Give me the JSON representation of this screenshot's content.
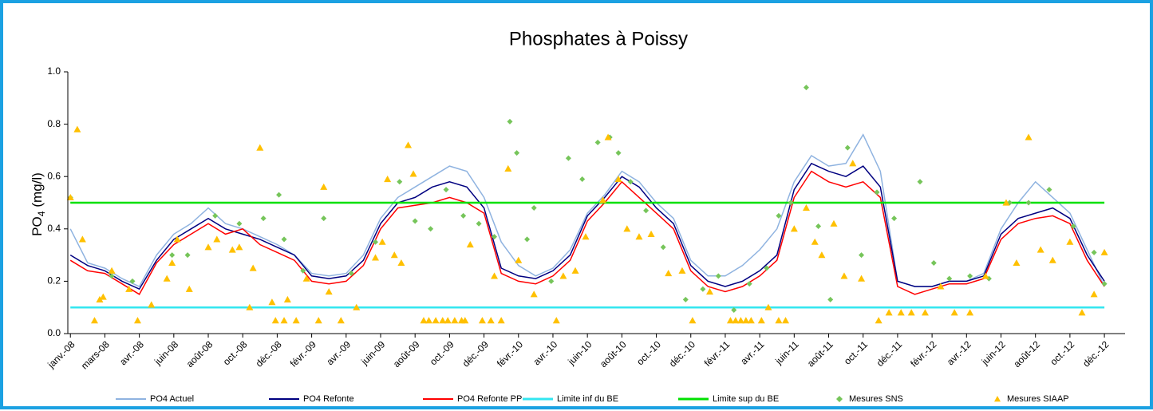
{
  "chart_data": {
    "type": "line",
    "title": "Phosphates à Poissy",
    "ylabel": {
      "main": "PO",
      "sub": "4",
      "unit": "(mg/l)"
    },
    "xlim": [
      -0.15,
      61.2
    ],
    "ylim": [
      0,
      1
    ],
    "yticks": [
      {
        "value": 0,
        "label": "0.0"
      },
      0.2,
      0.4,
      0.6,
      0.8,
      {
        "value": 1,
        "label": "1.0"
      }
    ],
    "xticks": [
      {
        "value": 0,
        "label": "janv.-08"
      },
      {
        "value": 2,
        "label": "mars-08"
      },
      {
        "value": 4,
        "label": "avr.-08"
      },
      {
        "value": 6,
        "label": "juin-08"
      },
      {
        "value": 8,
        "label": "août-08"
      },
      {
        "value": 10,
        "label": "oct.-08"
      },
      {
        "value": 12,
        "label": "déc.-08"
      },
      {
        "value": 14,
        "label": "févr.-09"
      },
      {
        "value": 16,
        "label": "avr.-09"
      },
      {
        "value": 18,
        "label": "juin-09"
      },
      {
        "value": 20,
        "label": "août-09"
      },
      {
        "value": 22,
        "label": "oct.-09"
      },
      {
        "value": 24,
        "label": "déc.-09"
      },
      {
        "value": 26,
        "label": "févr.-10"
      },
      {
        "value": 28,
        "label": "avr.-10"
      },
      {
        "value": 30,
        "label": "juin-10"
      },
      {
        "value": 32,
        "label": "août-10"
      },
      {
        "value": 34,
        "label": "oct.-10"
      },
      {
        "value": 36,
        "label": "déc.-10"
      },
      {
        "value": 38,
        "label": "févr.-11"
      },
      {
        "value": 40,
        "label": "avr.-11"
      },
      {
        "value": 42,
        "label": "juin-11"
      },
      {
        "value": 44,
        "label": "août-11"
      },
      {
        "value": 46,
        "label": "oct.-11"
      },
      {
        "value": 48,
        "label": "déc.-11"
      },
      {
        "value": 50,
        "label": "févr.-12"
      },
      {
        "value": 52,
        "label": "avr.-12"
      },
      {
        "value": 54,
        "label": "juin-12"
      },
      {
        "value": 56,
        "label": "août-12"
      },
      {
        "value": 58,
        "label": "oct.-12"
      },
      {
        "value": 60,
        "label": "déc.-12"
      }
    ],
    "grid": false,
    "legend": "bottom",
    "x": [
      0,
      1,
      2,
      3,
      4,
      5,
      6,
      7,
      8,
      9,
      10,
      11,
      12,
      13,
      14,
      15,
      16,
      17,
      18,
      19,
      20,
      21,
      22,
      23,
      24,
      25,
      26,
      27,
      28,
      29,
      30,
      31,
      32,
      33,
      34,
      35,
      36,
      37,
      38,
      39,
      40,
      41,
      42,
      43,
      44,
      45,
      46,
      47,
      48,
      49,
      50,
      51,
      52,
      53,
      54,
      55,
      56,
      57,
      58,
      59,
      60
    ],
    "series": [
      {
        "name": "PO4 Actuel",
        "type": "line",
        "color": "#8fb3e0",
        "values": [
          0.4,
          0.27,
          0.25,
          0.21,
          0.18,
          0.3,
          0.38,
          0.42,
          0.48,
          0.42,
          0.4,
          0.37,
          0.34,
          0.3,
          0.23,
          0.22,
          0.23,
          0.3,
          0.44,
          0.52,
          0.56,
          0.6,
          0.64,
          0.62,
          0.52,
          0.35,
          0.26,
          0.22,
          0.25,
          0.32,
          0.46,
          0.53,
          0.62,
          0.58,
          0.5,
          0.44,
          0.28,
          0.22,
          0.22,
          0.26,
          0.32,
          0.4,
          0.58,
          0.68,
          0.64,
          0.65,
          0.76,
          0.62,
          0.2,
          0.18,
          0.18,
          0.2,
          0.2,
          0.23,
          0.4,
          0.5,
          0.58,
          0.52,
          0.46,
          0.32,
          0.18
        ]
      },
      {
        "name": "PO4 Refonte",
        "type": "line",
        "color": "#000080",
        "values": [
          0.3,
          0.26,
          0.24,
          0.2,
          0.17,
          0.28,
          0.36,
          0.4,
          0.44,
          0.4,
          0.38,
          0.36,
          0.33,
          0.3,
          0.22,
          0.21,
          0.22,
          0.28,
          0.42,
          0.5,
          0.52,
          0.56,
          0.58,
          0.56,
          0.48,
          0.25,
          0.22,
          0.21,
          0.24,
          0.3,
          0.45,
          0.52,
          0.6,
          0.56,
          0.48,
          0.42,
          0.26,
          0.2,
          0.18,
          0.2,
          0.24,
          0.3,
          0.55,
          0.65,
          0.62,
          0.6,
          0.64,
          0.56,
          0.2,
          0.18,
          0.18,
          0.2,
          0.2,
          0.22,
          0.38,
          0.44,
          0.46,
          0.48,
          0.44,
          0.3,
          0.2
        ]
      },
      {
        "name": "PO4 Refonte PP",
        "type": "line",
        "color": "#ff0000",
        "values": [
          0.28,
          0.24,
          0.23,
          0.19,
          0.15,
          0.27,
          0.34,
          0.38,
          0.42,
          0.38,
          0.4,
          0.34,
          0.31,
          0.28,
          0.2,
          0.19,
          0.2,
          0.26,
          0.4,
          0.48,
          0.49,
          0.5,
          0.52,
          0.5,
          0.46,
          0.23,
          0.2,
          0.19,
          0.22,
          0.28,
          0.43,
          0.5,
          0.58,
          0.52,
          0.46,
          0.4,
          0.24,
          0.18,
          0.16,
          0.18,
          0.22,
          0.28,
          0.52,
          0.62,
          0.58,
          0.56,
          0.58,
          0.52,
          0.18,
          0.15,
          0.17,
          0.19,
          0.19,
          0.21,
          0.36,
          0.42,
          0.44,
          0.45,
          0.42,
          0.28,
          0.18
        ]
      },
      {
        "name": "Limite inf du BE",
        "type": "line",
        "color": "#33e6f0",
        "values": [
          0.1,
          0.1,
          0.1,
          0.1,
          0.1,
          0.1,
          0.1,
          0.1,
          0.1,
          0.1,
          0.1,
          0.1,
          0.1,
          0.1,
          0.1,
          0.1,
          0.1,
          0.1,
          0.1,
          0.1,
          0.1,
          0.1,
          0.1,
          0.1,
          0.1,
          0.1,
          0.1,
          0.1,
          0.1,
          0.1,
          0.1,
          0.1,
          0.1,
          0.1,
          0.1,
          0.1,
          0.1,
          0.1,
          0.1,
          0.1,
          0.1,
          0.1,
          0.1,
          0.1,
          0.1,
          0.1,
          0.1,
          0.1,
          0.1,
          0.1,
          0.1,
          0.1,
          0.1,
          0.1,
          0.1,
          0.1,
          0.1,
          0.1,
          0.1,
          0.1,
          0.1
        ]
      },
      {
        "name": "Limite sup du BE",
        "type": "line",
        "color": "#00e000",
        "values": [
          0.5,
          0.5,
          0.5,
          0.5,
          0.5,
          0.5,
          0.5,
          0.5,
          0.5,
          0.5,
          0.5,
          0.5,
          0.5,
          0.5,
          0.5,
          0.5,
          0.5,
          0.5,
          0.5,
          0.5,
          0.5,
          0.5,
          0.5,
          0.5,
          0.5,
          0.5,
          0.5,
          0.5,
          0.5,
          0.5,
          0.5,
          0.5,
          0.5,
          0.5,
          0.5,
          0.5,
          0.5,
          0.5,
          0.5,
          0.5,
          0.5,
          0.5,
          0.5,
          0.5,
          0.5,
          0.5,
          0.5,
          0.5,
          0.5,
          0.5,
          0.5,
          0.5,
          0.5,
          0.5,
          0.5,
          0.5,
          0.5,
          0.5,
          0.5,
          0.5,
          0.5
        ]
      },
      {
        "name": "Mesures SNS",
        "type": "scatter",
        "marker": "diamond",
        "color": "#76c55a",
        "x": [
          0,
          2.4,
          3.6,
          5.9,
          6.8,
          8.4,
          9.8,
          11.2,
          12.1,
          12.4,
          13.5,
          14.7,
          16.3,
          17.7,
          19.1,
          20.0,
          20.9,
          21.8,
          22.8,
          23.7,
          24.6,
          25.5,
          25.9,
          26.5,
          26.9,
          27.9,
          28.9,
          29.7,
          30.6,
          31.3,
          31.8,
          32.5,
          33.4,
          34.4,
          35.7,
          36.7,
          37.6,
          38.5,
          39.4,
          40.4,
          41.1,
          41.8,
          42.7,
          43.4,
          44.1,
          45.1,
          45.9,
          46.8,
          47.8,
          49.3,
          50.1,
          51.0,
          52.2,
          53.3,
          54.5,
          55.6,
          56.8,
          58.2,
          59.4,
          60.0
        ],
        "values": [
          0.52,
          0.22,
          0.2,
          0.3,
          0.3,
          0.45,
          0.42,
          0.44,
          0.53,
          0.36,
          0.24,
          0.44,
          0.23,
          0.35,
          0.58,
          0.43,
          0.4,
          0.55,
          0.45,
          0.42,
          0.37,
          0.81,
          0.69,
          0.36,
          0.48,
          0.2,
          0.67,
          0.59,
          0.73,
          0.75,
          0.69,
          0.58,
          0.47,
          0.33,
          0.13,
          0.17,
          0.22,
          0.09,
          0.19,
          0.25,
          0.45,
          0.5,
          0.94,
          0.41,
          0.13,
          0.71,
          0.3,
          0.54,
          0.44,
          0.58,
          0.27,
          0.21,
          0.22,
          0.21,
          0.5,
          0.5,
          0.55,
          0.41,
          0.31,
          0.19
        ]
      },
      {
        "name": "Mesures SIAAP",
        "type": "scatter",
        "marker": "triangle",
        "color": "#ffc000",
        "x": [
          0,
          0.4,
          0.7,
          1.4,
          1.7,
          1.9,
          2.4,
          3.4,
          3.9,
          4.7,
          5.6,
          5.9,
          6.2,
          6.9,
          8.0,
          8.5,
          9.4,
          9.8,
          10.4,
          10.6,
          11.0,
          11.7,
          11.9,
          12.4,
          12.6,
          13.1,
          13.7,
          14.4,
          14.7,
          15.0,
          15.7,
          16.6,
          17.7,
          18.1,
          18.4,
          18.8,
          19.2,
          19.6,
          19.9,
          20.5,
          20.8,
          21.2,
          21.6,
          21.9,
          22.3,
          22.7,
          22.9,
          23.2,
          23.9,
          24.4,
          24.6,
          25.0,
          25.4,
          26.0,
          26.9,
          28.2,
          28.6,
          29.3,
          29.9,
          30.9,
          31.2,
          31.8,
          32.3,
          33.0,
          33.7,
          34.7,
          35.5,
          36.1,
          37.1,
          38.3,
          38.6,
          38.9,
          39.2,
          39.5,
          40.1,
          40.5,
          41.1,
          41.5,
          42.0,
          42.7,
          43.2,
          43.6,
          44.3,
          44.9,
          45.4,
          45.9,
          46.9,
          47.5,
          48.2,
          48.8,
          49.6,
          50.5,
          51.3,
          52.2,
          53.1,
          54.3,
          54.9,
          55.6,
          56.3,
          57.0,
          58.0,
          58.7,
          59.4,
          60.0
        ],
        "values": [
          0.52,
          0.78,
          0.36,
          0.05,
          0.13,
          0.14,
          0.24,
          0.17,
          0.05,
          0.11,
          0.21,
          0.27,
          0.36,
          0.17,
          0.33,
          0.36,
          0.32,
          0.33,
          0.1,
          0.25,
          0.71,
          0.12,
          0.05,
          0.05,
          0.13,
          0.05,
          0.21,
          0.05,
          0.56,
          0.16,
          0.05,
          0.1,
          0.29,
          0.35,
          0.59,
          0.3,
          0.27,
          0.72,
          0.61,
          0.05,
          0.05,
          0.05,
          0.05,
          0.05,
          0.05,
          0.05,
          0.05,
          0.34,
          0.05,
          0.05,
          0.22,
          0.05,
          0.63,
          0.28,
          0.15,
          0.05,
          0.22,
          0.24,
          0.37,
          0.51,
          0.75,
          0.59,
          0.4,
          0.37,
          0.38,
          0.23,
          0.24,
          0.05,
          0.16,
          0.05,
          0.05,
          0.05,
          0.05,
          0.05,
          0.05,
          0.1,
          0.05,
          0.05,
          0.4,
          0.48,
          0.35,
          0.3,
          0.42,
          0.22,
          0.65,
          0.21,
          0.05,
          0.08,
          0.08,
          0.08,
          0.08,
          0.18,
          0.08,
          0.08,
          0.22,
          0.5,
          0.27,
          0.75,
          0.32,
          0.28,
          0.35,
          0.08,
          0.15,
          0.31
        ]
      }
    ]
  }
}
